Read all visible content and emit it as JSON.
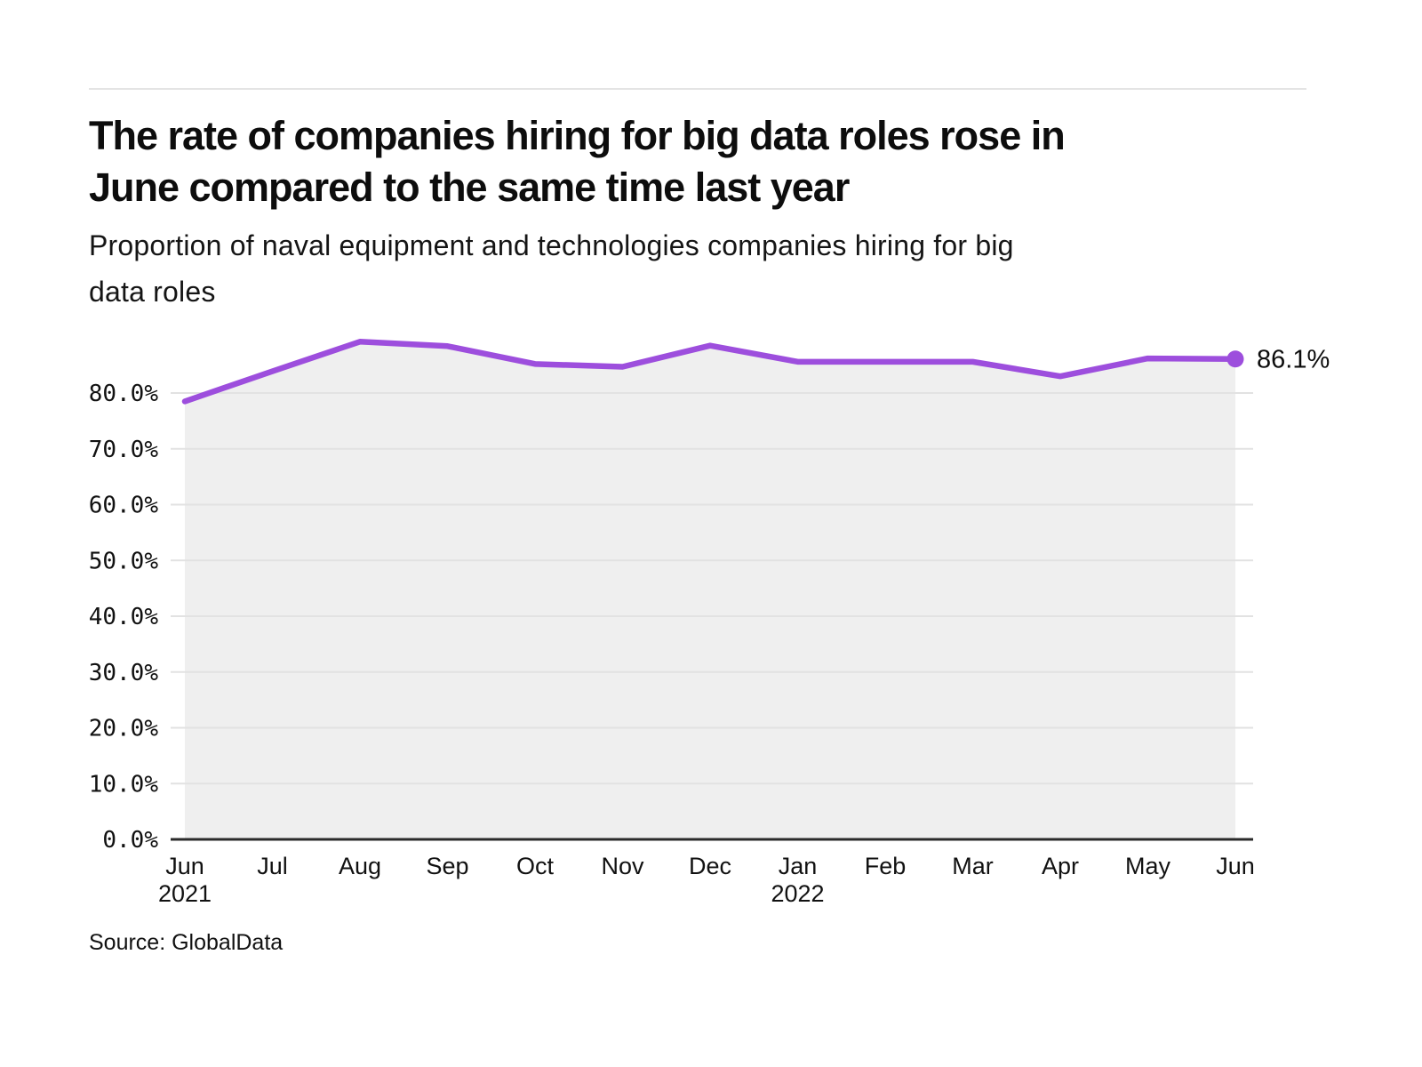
{
  "header": {
    "title_lines": [
      "The rate of companies hiring for big data roles rose in",
      "June compared to the same time last year"
    ],
    "subtitle_lines": [
      "Proportion of naval equipment and technologies companies hiring for big",
      "data roles"
    ]
  },
  "footer": {
    "source": "Source: GlobalData"
  },
  "colors": {
    "line": "#9d4edd",
    "area": "#efefef",
    "grid": "#e2e2e2",
    "axis": "#2b2b2b",
    "text": "#111111"
  },
  "chart_data": {
    "type": "line",
    "title": "The rate of companies hiring for big data roles rose in June compared to the same time last year",
    "subtitle": "Proportion of naval equipment and technologies companies hiring for big data roles",
    "x": [
      "Jun",
      "Jul",
      "Aug",
      "Sep",
      "Oct",
      "Nov",
      "Dec",
      "Jan",
      "Feb",
      "Mar",
      "Apr",
      "May",
      "Jun"
    ],
    "year_labels": [
      {
        "index": 0,
        "text": "2021"
      },
      {
        "index": 7,
        "text": "2022"
      }
    ],
    "values": [
      78.5,
      83.9,
      89.2,
      88.4,
      85.2,
      84.7,
      88.5,
      85.6,
      85.6,
      85.6,
      83.0,
      86.2,
      86.1
    ],
    "end_label": "86.1%",
    "yticks": [
      0,
      10,
      20,
      30,
      40,
      50,
      60,
      70,
      80
    ],
    "ytick_labels": [
      "0.0%",
      "10.0%",
      "20.0%",
      "30.0%",
      "40.0%",
      "50.0%",
      "60.0%",
      "70.0%",
      "80.0%"
    ],
    "ylim": [
      0,
      91
    ],
    "grid": true,
    "legend": false,
    "xlabel": "",
    "ylabel": ""
  }
}
